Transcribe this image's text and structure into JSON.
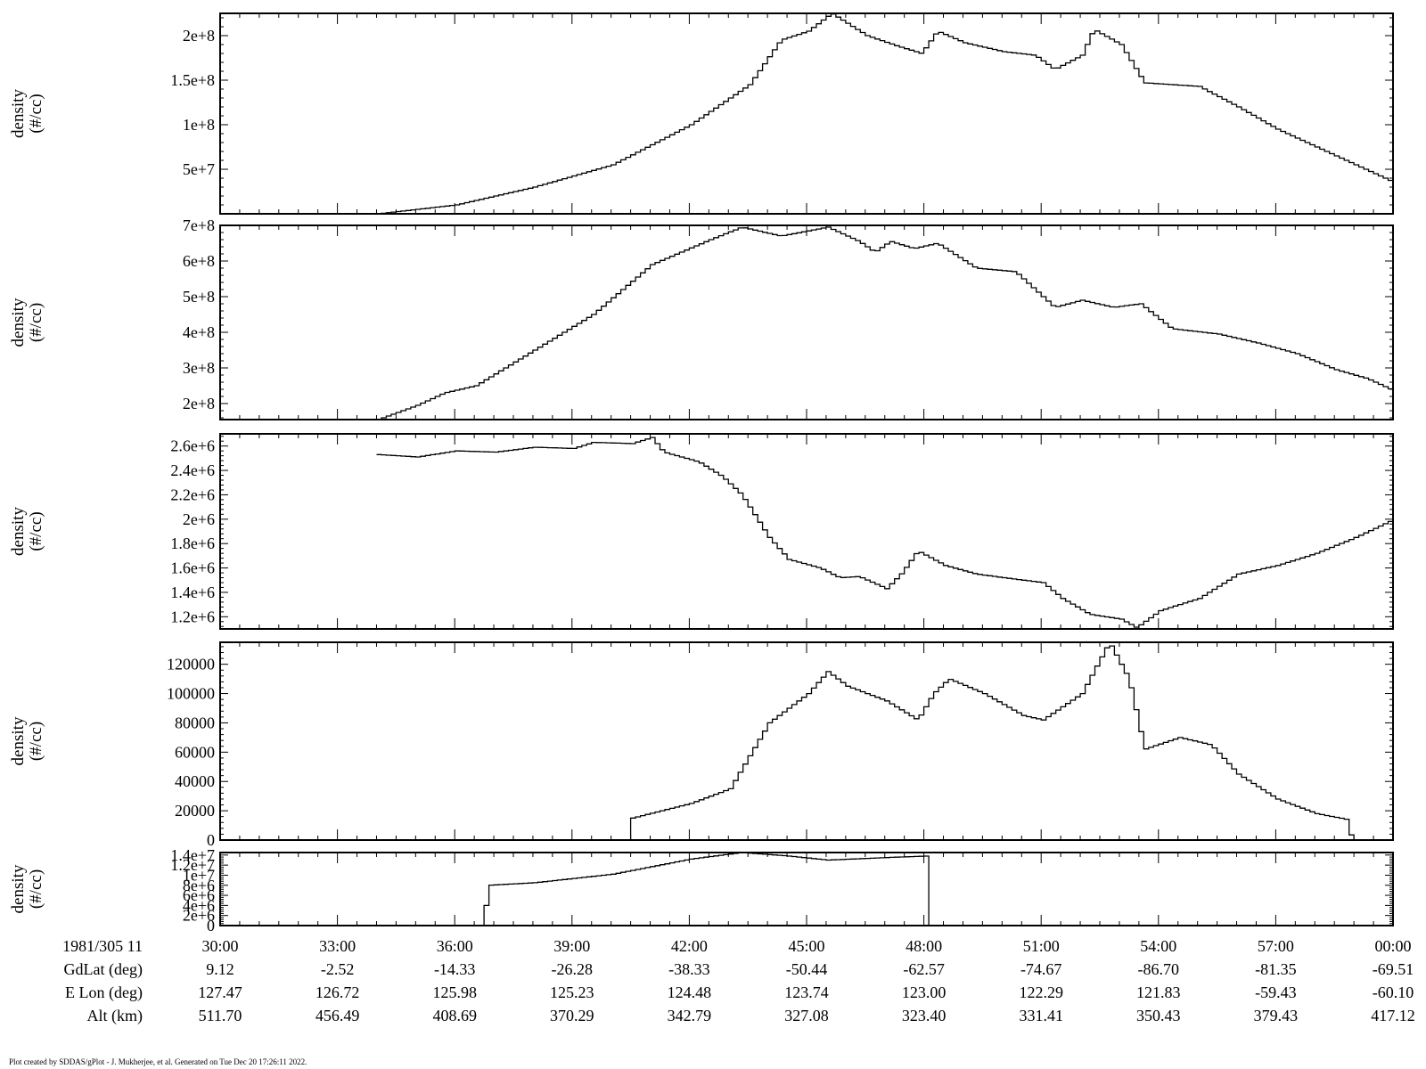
{
  "footer": "Plot created by SDDAS/gPlot - J. Mukherjee, et al.  Generated on Tue Dec 20 17:26:11 2022.",
  "x_axis": {
    "ticks": [
      "30:00",
      "33:00",
      "36:00",
      "39:00",
      "42:00",
      "45:00",
      "48:00",
      "51:00",
      "54:00",
      "57:00",
      "00:00"
    ],
    "tick_minutes": [
      30,
      33,
      36,
      39,
      42,
      45,
      48,
      51,
      54,
      57,
      60
    ],
    "range_minutes": [
      30,
      60
    ],
    "ephemeris_rows": [
      {
        "label": "1981/305 11",
        "values": [
          "30:00",
          "33:00",
          "36:00",
          "39:00",
          "42:00",
          "45:00",
          "48:00",
          "51:00",
          "54:00",
          "57:00",
          "00:00"
        ]
      },
      {
        "label": "GdLat (deg)",
        "values": [
          "9.12",
          "-2.52",
          "-14.33",
          "-26.28",
          "-38.33",
          "-50.44",
          "-62.57",
          "-74.67",
          "-86.70",
          "-81.35",
          "-69.51"
        ]
      },
      {
        "label": "E Lon (deg)",
        "values": [
          "127.47",
          "126.72",
          "125.98",
          "125.23",
          "124.48",
          "123.74",
          "123.00",
          "122.29",
          "121.83",
          "-59.43",
          "-60.10"
        ]
      },
      {
        "label": "Alt (km)",
        "values": [
          "511.70",
          "456.49",
          "408.69",
          "370.29",
          "342.79",
          "327.08",
          "323.40",
          "331.41",
          "350.43",
          "379.43",
          "417.12"
        ]
      }
    ]
  },
  "chart_data": [
    {
      "type": "line",
      "ylabel_line1": "density",
      "ylabel_line2": "(#/cc)",
      "ylim": [
        0,
        225000000.0
      ],
      "yticks": [
        {
          "v": 50000000.0,
          "label": "5e+7"
        },
        {
          "v": 100000000.0,
          "label": "1e+8"
        },
        {
          "v": 150000000.0,
          "label": "1.5e+8"
        },
        {
          "v": 200000000.0,
          "label": "2e+8"
        }
      ],
      "points": [
        [
          34.0,
          0
        ],
        [
          36.0,
          10000000.0
        ],
        [
          38.0,
          30000000.0
        ],
        [
          40.0,
          55000000.0
        ],
        [
          42.0,
          100000000.0
        ],
        [
          43.5,
          145000000.0
        ],
        [
          44.3,
          195000000.0
        ],
        [
          45.0,
          205000000.0
        ],
        [
          45.6,
          225000000.0
        ],
        [
          46.5,
          200000000.0
        ],
        [
          47.3,
          188000000.0
        ],
        [
          47.9,
          180000000.0
        ],
        [
          48.3,
          205000000.0
        ],
        [
          49.0,
          192000000.0
        ],
        [
          50.0,
          182000000.0
        ],
        [
          50.8,
          178000000.0
        ],
        [
          51.3,
          162000000.0
        ],
        [
          52.0,
          178000000.0
        ],
        [
          52.3,
          207000000.0
        ],
        [
          53.0,
          190000000.0
        ],
        [
          53.6,
          147000000.0
        ],
        [
          55.0,
          143000000.0
        ],
        [
          56.0,
          120000000.0
        ],
        [
          57.0,
          95000000.0
        ],
        [
          58.0,
          75000000.0
        ],
        [
          59.0,
          55000000.0
        ],
        [
          60.0,
          35000000.0
        ]
      ]
    },
    {
      "type": "line",
      "ylabel_line1": "density",
      "ylabel_line2": "(#/cc)",
      "ylim": [
        155000000.0,
        700000000.0
      ],
      "yticks": [
        {
          "v": 200000000.0,
          "label": "2e+8"
        },
        {
          "v": 300000000.0,
          "label": "3e+8"
        },
        {
          "v": 400000000.0,
          "label": "4e+8"
        },
        {
          "v": 500000000.0,
          "label": "5e+8"
        },
        {
          "v": 600000000.0,
          "label": "6e+8"
        },
        {
          "v": 700000000.0,
          "label": "7e+8"
        }
      ],
      "points": [
        [
          34.0,
          155000000.0
        ],
        [
          35.0,
          195000000.0
        ],
        [
          35.7,
          230000000.0
        ],
        [
          36.5,
          250000000.0
        ],
        [
          38.0,
          350000000.0
        ],
        [
          39.5,
          450000000.0
        ],
        [
          41.0,
          590000000.0
        ],
        [
          42.5,
          660000000.0
        ],
        [
          43.3,
          695000000.0
        ],
        [
          44.3,
          670000000.0
        ],
        [
          45.5,
          695000000.0
        ],
        [
          46.3,
          655000000.0
        ],
        [
          46.7,
          625000000.0
        ],
        [
          47.1,
          655000000.0
        ],
        [
          47.7,
          635000000.0
        ],
        [
          48.3,
          650000000.0
        ],
        [
          49.3,
          580000000.0
        ],
        [
          50.3,
          570000000.0
        ],
        [
          50.8,
          520000000.0
        ],
        [
          51.3,
          470000000.0
        ],
        [
          52.0,
          490000000.0
        ],
        [
          52.8,
          470000000.0
        ],
        [
          53.5,
          480000000.0
        ],
        [
          54.3,
          410000000.0
        ],
        [
          55.5,
          395000000.0
        ],
        [
          56.5,
          370000000.0
        ],
        [
          57.5,
          340000000.0
        ],
        [
          58.5,
          295000000.0
        ],
        [
          59.3,
          270000000.0
        ],
        [
          60.0,
          235000000.0
        ]
      ]
    },
    {
      "type": "line",
      "ylabel_line1": "density",
      "ylabel_line2": "(#/cc)",
      "ylim": [
        1100000.0,
        2700000.0
      ],
      "yticks": [
        {
          "v": 1200000.0,
          "label": "1.2e+6"
        },
        {
          "v": 1400000.0,
          "label": "1.4e+6"
        },
        {
          "v": 1600000.0,
          "label": "1.6e+6"
        },
        {
          "v": 1800000.0,
          "label": "1.8e+6"
        },
        {
          "v": 2000000.0,
          "label": "2e+6"
        },
        {
          "v": 2200000.0,
          "label": "2.2e+6"
        },
        {
          "v": 2400000.0,
          "label": "2.4e+6"
        },
        {
          "v": 2600000.0,
          "label": "2.6e+6"
        }
      ],
      "points": [
        [
          34.0,
          2530000.0
        ],
        [
          35.0,
          2510000.0
        ],
        [
          36.0,
          2560000.0
        ],
        [
          37.0,
          2550000.0
        ],
        [
          38.0,
          2590000.0
        ],
        [
          39.0,
          2580000.0
        ],
        [
          39.5,
          2630000.0
        ],
        [
          40.5,
          2620000.0
        ],
        [
          41.0,
          2670000.0
        ],
        [
          41.3,
          2550000.0
        ],
        [
          42.2,
          2470000.0
        ],
        [
          42.8,
          2350000.0
        ],
        [
          43.3,
          2200000.0
        ],
        [
          44.0,
          1850000.0
        ],
        [
          44.5,
          1670000.0
        ],
        [
          45.3,
          1600000.0
        ],
        [
          45.8,
          1520000.0
        ],
        [
          46.3,
          1530000.0
        ],
        [
          47.0,
          1430000.0
        ],
        [
          47.4,
          1560000.0
        ],
        [
          47.8,
          1740000.0
        ],
        [
          48.5,
          1620000.0
        ],
        [
          49.3,
          1550000.0
        ],
        [
          50.0,
          1520000.0
        ],
        [
          51.0,
          1480000.0
        ],
        [
          51.5,
          1350000.0
        ],
        [
          52.2,
          1220000.0
        ],
        [
          53.0,
          1180000.0
        ],
        [
          53.4,
          1110000.0
        ],
        [
          54.0,
          1250000.0
        ],
        [
          55.0,
          1350000.0
        ],
        [
          56.0,
          1550000.0
        ],
        [
          57.0,
          1620000.0
        ],
        [
          58.0,
          1720000.0
        ],
        [
          59.0,
          1850000.0
        ],
        [
          60.0,
          2000000.0
        ]
      ]
    },
    {
      "type": "line",
      "ylabel_line1": "density",
      "ylabel_line2": "(#/cc)",
      "ylim": [
        0,
        135000
      ],
      "yticks": [
        {
          "v": 0,
          "label": "0"
        },
        {
          "v": 20000,
          "label": "20000"
        },
        {
          "v": 40000,
          "label": "40000"
        },
        {
          "v": 60000,
          "label": "60000"
        },
        {
          "v": 80000,
          "label": "80000"
        },
        {
          "v": 100000,
          "label": "100000"
        },
        {
          "v": 120000,
          "label": "120000"
        }
      ],
      "points": [
        [
          34.0,
          0
        ],
        [
          40.4,
          0
        ],
        [
          40.5,
          15000
        ],
        [
          42.0,
          25000
        ],
        [
          43.0,
          35000
        ],
        [
          44.0,
          80000
        ],
        [
          45.0,
          100000
        ],
        [
          45.5,
          115000
        ],
        [
          46.0,
          105000
        ],
        [
          47.0,
          95000
        ],
        [
          47.8,
          82000
        ],
        [
          48.2,
          100000
        ],
        [
          48.6,
          110000
        ],
        [
          49.5,
          100000
        ],
        [
          50.5,
          85000
        ],
        [
          51.0,
          82000
        ],
        [
          52.0,
          100000
        ],
        [
          52.7,
          135000
        ],
        [
          53.2,
          110000
        ],
        [
          53.6,
          62000
        ],
        [
          54.5,
          70000
        ],
        [
          55.3,
          65000
        ],
        [
          56.0,
          45000
        ],
        [
          57.0,
          28000
        ],
        [
          58.0,
          18000
        ],
        [
          58.8,
          14000
        ],
        [
          58.9,
          0
        ],
        [
          60.0,
          0
        ]
      ]
    },
    {
      "type": "line",
      "ylabel_line1": "density",
      "ylabel_line2": "(#/cc)",
      "ylim": [
        0,
        14500000.0
      ],
      "yticks": [
        {
          "v": 0,
          "label": "0"
        },
        {
          "v": 2000000.0,
          "label": "2e+6"
        },
        {
          "v": 4000000.0,
          "label": "4e+6"
        },
        {
          "v": 6000000.0,
          "label": "6e+6"
        },
        {
          "v": 8000000.0,
          "label": "8e+6"
        },
        {
          "v": 10000000.0,
          "label": "1e+7"
        },
        {
          "v": 12000000.0,
          "label": "1.2e+7"
        },
        {
          "v": 14000000.0,
          "label": "1.4e+7"
        }
      ],
      "points": [
        [
          34.0,
          0
        ],
        [
          36.7,
          0
        ],
        [
          36.8,
          8000000.0
        ],
        [
          38.0,
          8500000.0
        ],
        [
          40.0,
          10200000.0
        ],
        [
          42.0,
          13200000.0
        ],
        [
          43.3,
          14500000.0
        ],
        [
          44.5,
          13800000.0
        ],
        [
          45.5,
          13000000.0
        ],
        [
          47.0,
          13500000.0
        ],
        [
          48.0,
          13800000.0
        ],
        [
          48.1,
          0
        ],
        [
          60.0,
          0
        ]
      ]
    }
  ]
}
